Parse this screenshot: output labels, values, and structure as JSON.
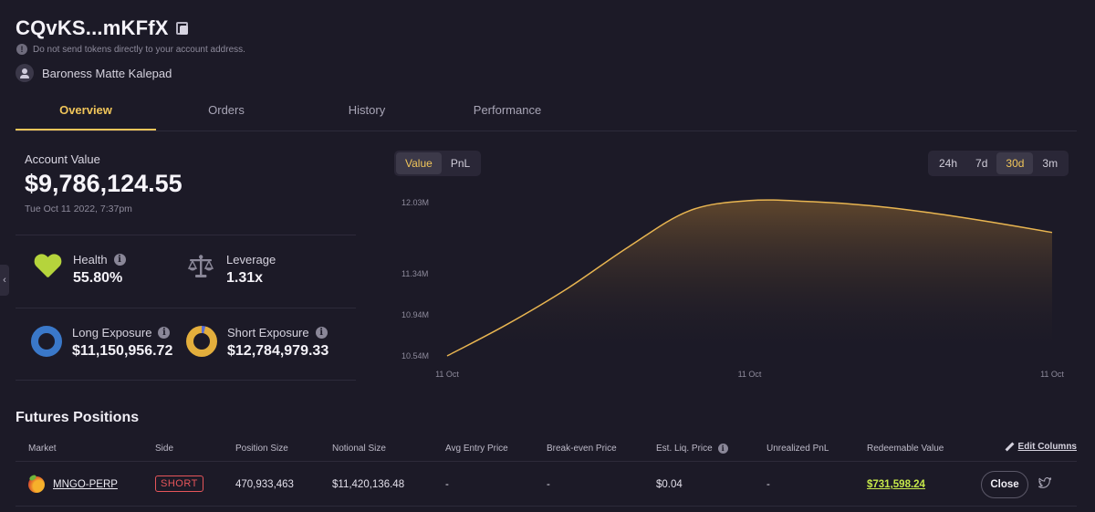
{
  "header": {
    "account_short": "CQvKS...mKFfX",
    "warning": "Do not send tokens directly to your account address.",
    "owner": "Baroness Matte Kalepad"
  },
  "tabs": [
    {
      "label": "Overview",
      "active": true
    },
    {
      "label": "Orders",
      "active": false
    },
    {
      "label": "History",
      "active": false
    },
    {
      "label": "Performance",
      "active": false
    }
  ],
  "stats": {
    "account_value_label": "Account Value",
    "account_value": "$9,786,124.55",
    "timestamp": "Tue Oct 11 2022, 7:37pm",
    "health_label": "Health",
    "health_value": "55.80%",
    "leverage_label": "Leverage",
    "leverage_value": "1.31x",
    "long_label": "Long Exposure",
    "long_value": "$11,150,956.72",
    "short_label": "Short Exposure",
    "short_value": "$12,784,979.33"
  },
  "chart_controls": {
    "metric_options": [
      "Value",
      "PnL"
    ],
    "metric_selected": "Value",
    "range_options": [
      "24h",
      "7d",
      "30d",
      "3m"
    ],
    "range_selected": "30d"
  },
  "chart_data": {
    "type": "area",
    "title": "",
    "xlabel": "",
    "ylabel": "",
    "x": [
      "11 Oct",
      "11 Oct",
      "11 Oct",
      "11 Oct",
      "11 Oct",
      "11 Oct",
      "11 Oct",
      "11 Oct",
      "11 Oct",
      "11 Oct",
      "11 Oct"
    ],
    "x_tick_labels": [
      "11 Oct",
      "11 Oct",
      "11 Oct"
    ],
    "y_tick_labels": [
      "12.03M",
      "11.34M",
      "10.94M",
      "10.54M"
    ],
    "series": [
      {
        "values": [
          10.54,
          10.85,
          11.2,
          11.6,
          11.95,
          12.05,
          12.04,
          12.0,
          11.93,
          11.84,
          11.74
        ]
      }
    ],
    "ylim": [
      10.54,
      12.03
    ],
    "grid": false,
    "line_color": "#e8b551",
    "fill_color": "#6b4e2e"
  },
  "futures": {
    "title": "Futures Positions",
    "edit_columns": "Edit Columns",
    "columns": [
      "Market",
      "Side",
      "Position Size",
      "Notional Size",
      "Avg Entry Price",
      "Break-even Price",
      "Est. Liq. Price",
      "Unrealized PnL",
      "Redeemable Value"
    ],
    "rows": [
      {
        "market": "MNGO-PERP",
        "side": "SHORT",
        "position_size": "470,933,463",
        "notional_size": "$11,420,136.48",
        "avg_entry": "-",
        "break_even": "-",
        "liq_price": "$0.04",
        "unrealized_pnl": "-",
        "redeemable": "$731,598.24",
        "close_label": "Close"
      }
    ]
  },
  "colors": {
    "accent": "#f0c55a",
    "background": "#1c1a27",
    "health": "#b5d43c",
    "short": "#e6555a",
    "long": "#3a78c9",
    "positive": "#c6e84a"
  }
}
